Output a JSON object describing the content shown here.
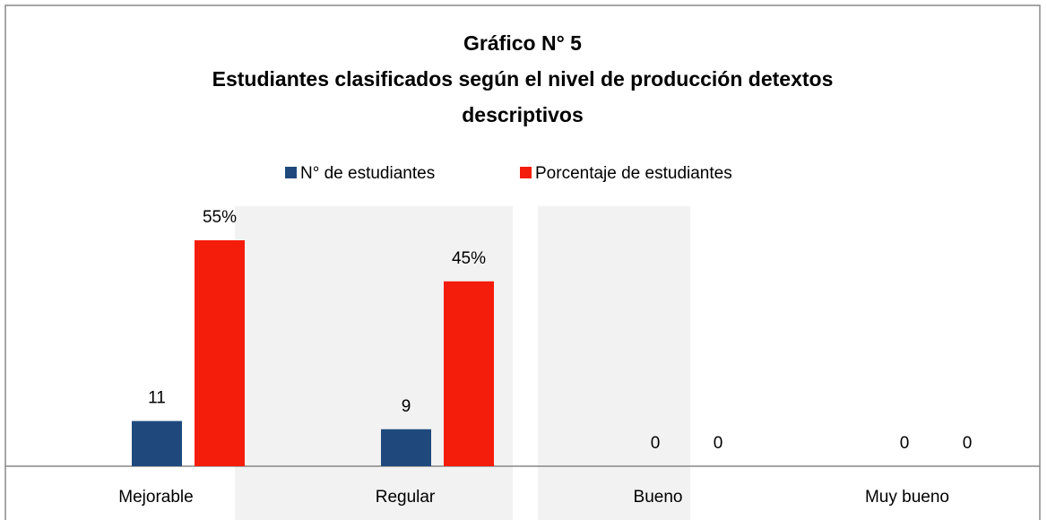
{
  "chart_data": {
    "type": "bar",
    "title": [
      "Gráfico N° 5",
      "Estudiantes clasificados según el nivel de producción detextos",
      "descriptivos"
    ],
    "categories": [
      "Mejorable",
      "Regular",
      "Bueno",
      "Muy bueno"
    ],
    "series": [
      {
        "name": "N° de estudiantes",
        "color": "#1f497d",
        "values": [
          11,
          9,
          0,
          0
        ]
      },
      {
        "name": "Porcentaje de estudiantes",
        "color": "#f41c0a",
        "values": [
          55,
          45,
          0,
          0
        ],
        "value_labels": [
          "55%",
          "45%",
          "0",
          "0"
        ]
      }
    ],
    "legend": "top"
  }
}
